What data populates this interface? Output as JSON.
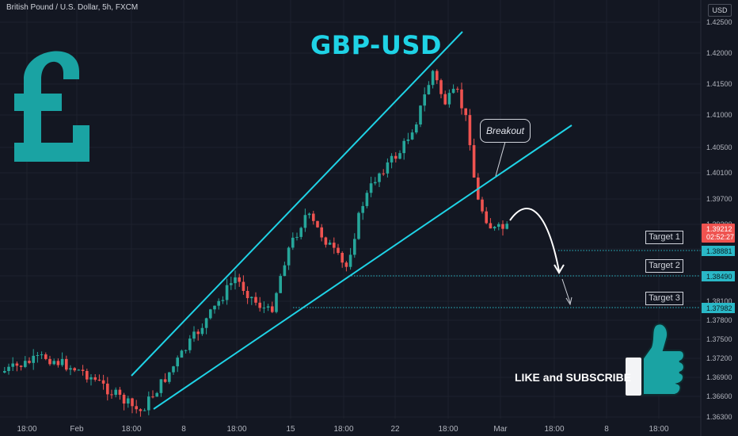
{
  "header": {
    "symbol": "British Pound / U.S. Dollar, 5h, FXCM",
    "currency": "USD"
  },
  "annotations": {
    "title": "GBP-USD",
    "callout": "Breakout",
    "like": "LIKE and SUBSCRIBE"
  },
  "colors": {
    "up": "#26a69a",
    "down": "#ef5350",
    "trendline": "#1fd3e6",
    "background": "#131722",
    "target_line": "#2ab8c7",
    "logo": "#1aa3a3"
  },
  "icons": {
    "logo": "pound-sign-icon",
    "thumb": "thumbs-up-icon",
    "arrow": "curved-arrow-icon"
  },
  "chart_data": {
    "type": "candlestick",
    "y_range": [
      1.3615,
      1.4275
    ],
    "y_ticks": [
      "1.42500",
      "1.42000",
      "1.41500",
      "1.41000",
      "1.40500",
      "1.40100",
      "1.39700",
      "1.39200",
      "1.38800",
      "1.38490",
      "1.38100",
      "1.37800",
      "1.37500",
      "1.37200",
      "1.36900",
      "1.36600",
      "1.36300"
    ],
    "x_ticks": [
      "18:00",
      "Feb",
      "18:00",
      "8",
      "18:00",
      "15",
      "18:00",
      "22",
      "18:00",
      "Mar",
      "18:00",
      "8",
      "18:00"
    ],
    "current_price": {
      "value": "1.39212",
      "countdown": "02:52:27"
    },
    "targets": [
      {
        "label": "Target 1",
        "value": "1.38881"
      },
      {
        "label": "Target 2",
        "value": "1.38490"
      },
      {
        "label": "Target 3",
        "value": "1.37982"
      }
    ],
    "channel": {
      "upper": [
        [
          "2021-01-30 18:00",
          1.369
        ],
        [
          "2021-02-26 00:00",
          1.4235
        ]
      ],
      "lower": [
        [
          "2021-02-01 00:00",
          1.363
        ],
        [
          "2021-03-04 00:00",
          1.409
        ]
      ]
    }
  }
}
